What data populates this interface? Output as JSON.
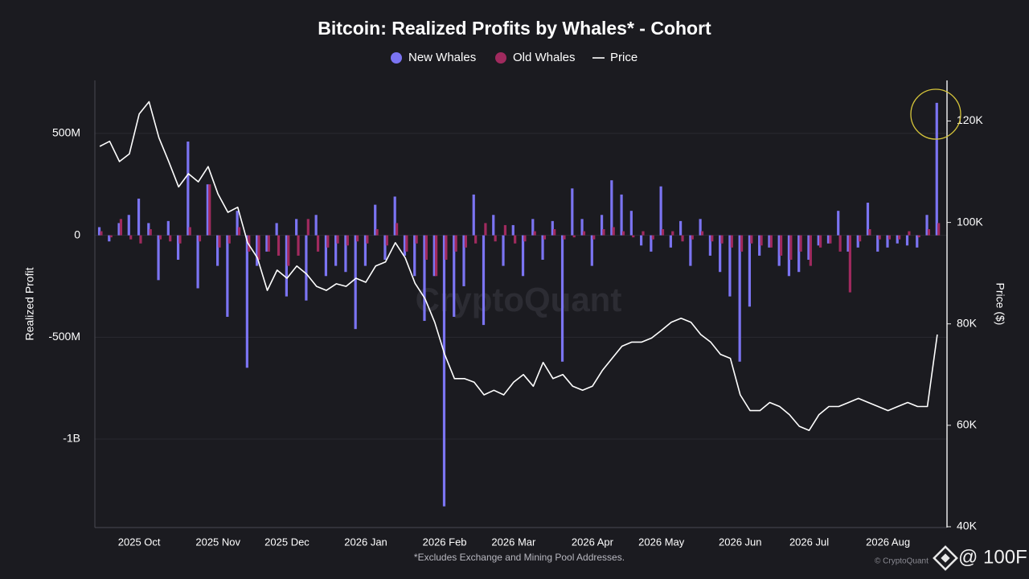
{
  "chart_data": {
    "type": "bar",
    "title": "Bitcoin: Realized Profits by Whales* - Cohort",
    "y_label": "Realized Profit",
    "y2_label": "Price ($)",
    "footnote": "*Excludes Exchange and Mining Pool Addresses.",
    "watermark": "CryptoQuant",
    "credit": "© CryptoQuant",
    "overlay_tag": "@ 100F",
    "categories": [
      null,
      null,
      null,
      null,
      "2025 Oct",
      null,
      null,
      null,
      null,
      null,
      null,
      null,
      "2025 Nov",
      null,
      null,
      null,
      null,
      null,
      null,
      "2025 Dec",
      null,
      null,
      null,
      null,
      null,
      null,
      null,
      "2026 Jan",
      null,
      null,
      null,
      null,
      null,
      null,
      null,
      "2026 Feb",
      null,
      null,
      null,
      null,
      null,
      null,
      "2026 Mar",
      null,
      null,
      null,
      null,
      null,
      null,
      null,
      "2026 Apr",
      null,
      null,
      null,
      null,
      null,
      null,
      "2026 May",
      null,
      null,
      null,
      null,
      null,
      null,
      null,
      "2026 Jun",
      null,
      null,
      null,
      null,
      null,
      null,
      "2026 Jul",
      null,
      null,
      null,
      null,
      null,
      null,
      null,
      "2026 Aug",
      null,
      null,
      null,
      null,
      null
    ],
    "series": [
      {
        "name": "New Whales",
        "type": "bar",
        "color": "#7b74f2",
        "values": [
          40000000,
          -30000000,
          60000000,
          100000000,
          180000000,
          60000000,
          -220000000,
          70000000,
          -120000000,
          460000000,
          -260000000,
          250000000,
          -150000000,
          -400000000,
          120000000,
          -650000000,
          -150000000,
          -80000000,
          60000000,
          -300000000,
          80000000,
          -320000000,
          100000000,
          -200000000,
          -150000000,
          -180000000,
          -460000000,
          -150000000,
          150000000,
          -120000000,
          190000000,
          -100000000,
          -200000000,
          -420000000,
          -200000000,
          -1330000000,
          -400000000,
          -250000000,
          200000000,
          -440000000,
          100000000,
          -150000000,
          50000000,
          -200000000,
          80000000,
          -120000000,
          70000000,
          -620000000,
          230000000,
          80000000,
          -150000000,
          100000000,
          270000000,
          200000000,
          120000000,
          -50000000,
          -80000000,
          240000000,
          -60000000,
          70000000,
          -150000000,
          80000000,
          -100000000,
          -180000000,
          -300000000,
          -620000000,
          -350000000,
          -100000000,
          -60000000,
          -150000000,
          -200000000,
          -180000000,
          -120000000,
          -50000000,
          -40000000,
          120000000,
          -80000000,
          -60000000,
          160000000,
          -80000000,
          -60000000,
          -40000000,
          -50000000,
          -60000000,
          100000000,
          650000000
        ]
      },
      {
        "name": "Old Whales",
        "type": "bar",
        "color": "#a02a5e",
        "values": [
          20000000,
          -10000000,
          80000000,
          -20000000,
          -40000000,
          30000000,
          -20000000,
          -30000000,
          -40000000,
          40000000,
          -30000000,
          250000000,
          -60000000,
          -40000000,
          40000000,
          -80000000,
          -120000000,
          -80000000,
          -100000000,
          -150000000,
          -100000000,
          80000000,
          -80000000,
          -60000000,
          -40000000,
          -50000000,
          -30000000,
          -40000000,
          30000000,
          -50000000,
          60000000,
          -80000000,
          -40000000,
          -120000000,
          -200000000,
          -120000000,
          -80000000,
          -60000000,
          -40000000,
          60000000,
          -30000000,
          50000000,
          -40000000,
          -30000000,
          20000000,
          -20000000,
          30000000,
          -20000000,
          -10000000,
          20000000,
          -20000000,
          30000000,
          40000000,
          20000000,
          -10000000,
          20000000,
          -20000000,
          30000000,
          20000000,
          -30000000,
          -20000000,
          20000000,
          -30000000,
          -40000000,
          -60000000,
          -80000000,
          -40000000,
          -50000000,
          -60000000,
          -100000000,
          -120000000,
          -80000000,
          -150000000,
          -60000000,
          -40000000,
          -80000000,
          -280000000,
          -30000000,
          30000000,
          -20000000,
          -20000000,
          -20000000,
          20000000,
          -10000000,
          30000000,
          60000000
        ]
      },
      {
        "name": "Price",
        "type": "line",
        "axis": "y2",
        "color": "#ffffff",
        "values": [
          115000,
          116000,
          112000,
          113500,
          121400,
          123800,
          116700,
          112000,
          107000,
          109600,
          108000,
          111000,
          105600,
          102000,
          103000,
          96000,
          93000,
          86600,
          90600,
          89000,
          91400,
          89800,
          87400,
          86600,
          87900,
          87400,
          89000,
          88200,
          91400,
          92200,
          96000,
          93000,
          88000,
          85000,
          80300,
          74000,
          69200,
          69200,
          68500,
          66000,
          66900,
          66000,
          68500,
          70000,
          67700,
          72400,
          69200,
          70000,
          67700,
          66900,
          67700,
          70800,
          73200,
          75600,
          76400,
          76400,
          77200,
          78700,
          80300,
          81100,
          80300,
          77900,
          76400,
          74000,
          73200,
          66000,
          62900,
          62900,
          64500,
          63700,
          62100,
          59800,
          59000,
          62100,
          63700,
          63700,
          64500,
          65300,
          64500,
          63700,
          62900,
          63700,
          64500,
          63700,
          63700,
          77900
        ]
      }
    ],
    "ylim": [
      -1430000000,
      760000000
    ],
    "yticks": [
      {
        "value": -1000000000,
        "label": "-1B"
      },
      {
        "value": -500000000,
        "label": "-500M"
      },
      0,
      {
        "value": 500000000,
        "label": "500M"
      }
    ],
    "y2lim": [
      40000,
      128000
    ],
    "y2ticks": [
      {
        "value": 40000,
        "label": "40K"
      },
      {
        "value": 60000,
        "label": "60K"
      },
      {
        "value": 80000,
        "label": "80K"
      },
      {
        "value": 100000,
        "label": "100K"
      },
      {
        "value": 120000,
        "label": "120K"
      }
    ],
    "grid": true,
    "legend": "top"
  }
}
